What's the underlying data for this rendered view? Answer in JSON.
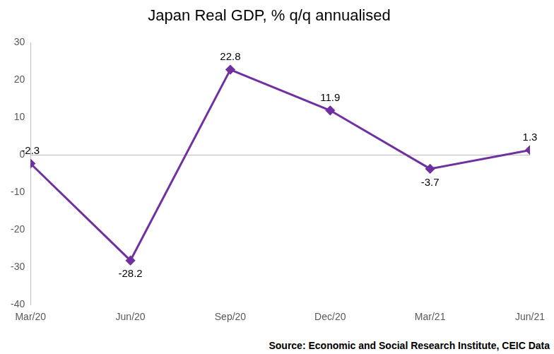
{
  "chart_data": {
    "type": "line",
    "title": "Japan Real GDP, % q/q annualised",
    "categories": [
      "Mar/20",
      "Jun/20",
      "Sep/20",
      "Dec/20",
      "Mar/21",
      "Jun/21"
    ],
    "values": [
      -2.3,
      -28.2,
      22.8,
      11.9,
      -3.7,
      1.3
    ],
    "color": "#7030a0",
    "marker": "diamond",
    "ylim": [
      -40,
      30
    ],
    "yticks": [
      -40,
      -30,
      -20,
      -10,
      0,
      10,
      20,
      30
    ],
    "grid": false,
    "data_labels": true,
    "annotations": [
      "Source: Economic and Social Research Institute, CEIC Data"
    ]
  }
}
